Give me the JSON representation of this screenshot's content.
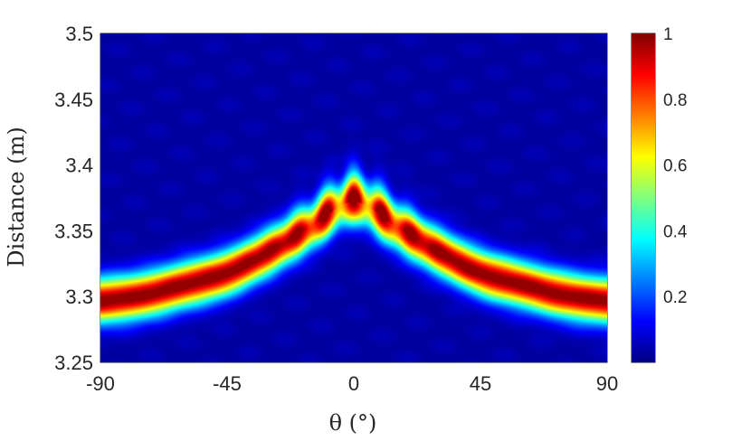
{
  "chart_data": {
    "type": "heatmap",
    "title": "",
    "xlabel": "θ (°)",
    "ylabel": "Distance (m)",
    "xlim": [
      -90,
      90
    ],
    "ylim": [
      3.25,
      3.5
    ],
    "x_ticks": [
      "-90",
      "-45",
      "0",
      "45",
      "90"
    ],
    "x_tick_values": [
      -90,
      -45,
      0,
      45,
      90
    ],
    "y_ticks": [
      "3.25",
      "3.3",
      "3.35",
      "3.4",
      "3.45",
      "3.5"
    ],
    "y_tick_values": [
      3.25,
      3.3,
      3.35,
      3.4,
      3.45,
      3.5
    ],
    "colorbar": {
      "range": [
        0,
        1
      ],
      "ticks": [
        "0.2",
        "0.4",
        "0.6",
        "0.8",
        "1"
      ],
      "tick_values": [
        0.2,
        0.4,
        0.6,
        0.8,
        1.0
      ],
      "colormap": "jet"
    },
    "peak_ridge": {
      "theta_deg": [
        -90,
        -75,
        -60,
        -45,
        -30,
        -15,
        0,
        15,
        30,
        45,
        60,
        75,
        90
      ],
      "distance_m": [
        3.297,
        3.301,
        3.309,
        3.318,
        3.334,
        3.353,
        3.372,
        3.353,
        3.334,
        3.318,
        3.309,
        3.301,
        3.297
      ],
      "peak_value": 1.0
    }
  }
}
